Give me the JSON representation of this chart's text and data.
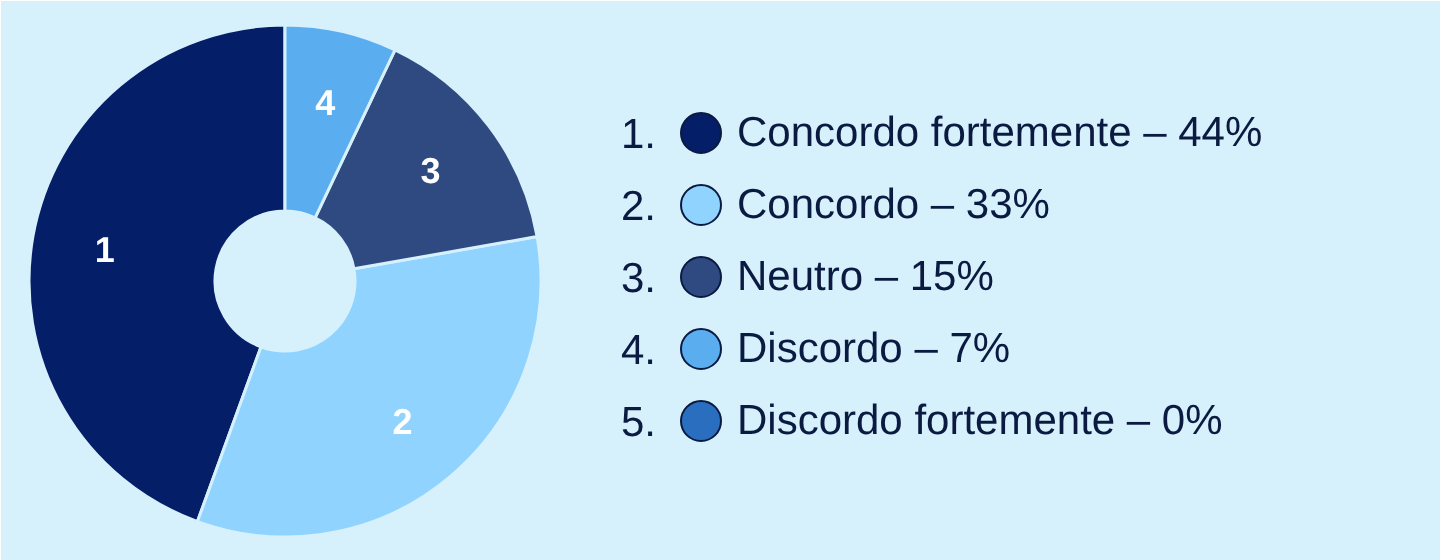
{
  "chart_data": {
    "type": "donut",
    "categories": [
      "Concordo fortemente – 44%",
      "Concordo – 33%",
      "Neutro – 15%",
      "Discordo – 7%",
      "Discordo fortemente – 0%"
    ],
    "values": [
      44,
      33,
      15,
      7,
      0
    ],
    "colors": [
      "#041e68",
      "#8fd3fe",
      "#2f4a80",
      "#5aaef0",
      "#2a6fbf"
    ],
    "annotations": [
      "1.",
      "2.",
      "3.",
      "4.",
      "5.",
      {
        "text": "1",
        "x": "Concordo fortemente – 44%"
      },
      {
        "text": "2",
        "x": "Concordo – 33%"
      },
      {
        "text": "3",
        "x": "Neutro – 15%"
      },
      {
        "text": "4",
        "x": "Discordo – 7%"
      }
    ],
    "legend": "right"
  }
}
